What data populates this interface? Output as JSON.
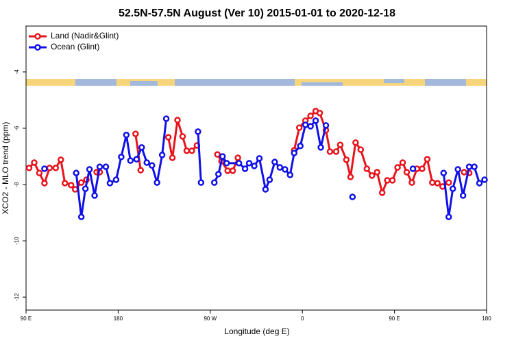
{
  "chart_data": {
    "type": "line",
    "title": "52.5N-57.5N August (Ver 10)   2015-01-01 to 2020-12-18",
    "x_label": "Longitude (deg E)",
    "y_label": "XCO2 - MLO trend (ppm)",
    "xlim": [
      -270,
      180
    ],
    "ylim": [
      -12.46,
      -2.37
    ],
    "xticks": [
      {
        "value": -270,
        "label": "90 E"
      },
      {
        "value": -180,
        "label": "180"
      },
      {
        "value": -90,
        "label": "90 W"
      },
      0,
      {
        "value": 90,
        "label": "90 E"
      },
      180
    ],
    "yticks": [
      -12,
      -10,
      -8,
      -6,
      -4
    ],
    "legend": "top-left",
    "series": [
      {
        "name": "Land (Nadir&Glint)",
        "color": "#e8131b",
        "x": [
          -267,
          -262,
          -257,
          -252,
          -247,
          -241,
          -236,
          -232,
          -226,
          -222,
          -216,
          -211,
          null,
          -201,
          -198,
          null,
          -163,
          -158,
          null,
          -131,
          -127,
          -122,
          -117,
          -113,
          -108,
          -103,
          null,
          -83,
          -79,
          -73,
          -68,
          -63,
          null,
          -8,
          -3,
          3,
          8,
          13,
          17,
          23,
          27,
          33,
          37,
          43,
          47,
          52,
          57,
          63,
          68,
          73,
          78,
          83,
          88,
          93,
          98,
          102,
          107,
          112,
          117,
          122,
          127,
          132,
          137,
          143,
          null,
          158,
          163
        ],
        "values": [
          -7.41,
          -7.22,
          -7.59,
          -7.95,
          -7.41,
          -7.41,
          -7.12,
          -7.95,
          -8.02,
          -8.17,
          -7.93,
          -7.83,
          null,
          -7.56,
          -7.56,
          null,
          -6.2,
          -7.49,
          null,
          -6.32,
          -7.05,
          -5.71,
          -6.29,
          -6.8,
          -6.8,
          -6.61,
          null,
          -6.93,
          -7.17,
          -7.51,
          -7.51,
          -7.05,
          null,
          -6.78,
          -5.98,
          -5.73,
          -5.56,
          -5.39,
          -5.46,
          -6.07,
          -6.83,
          -6.83,
          -6.59,
          -7.12,
          -7.73,
          -6.51,
          -6.76,
          -7.44,
          -7.68,
          -7.56,
          -8.29,
          -7.85,
          -7.85,
          -7.39,
          -7.22,
          -7.56,
          -7.93,
          -7.44,
          -7.44,
          -7.1,
          -7.93,
          -7.95,
          -8.07,
          -7.93,
          null,
          -7.56,
          -7.59
        ]
      },
      {
        "name": "Ocean (Glint)",
        "color": "#1010e8",
        "x": [
          -252,
          null,
          -221,
          -216,
          -212,
          -208,
          -203,
          -198,
          -192,
          -188,
          -182,
          -177,
          -172,
          -168,
          -162,
          -157,
          -152,
          -147,
          -142,
          -137,
          -133,
          null,
          -102,
          -99,
          null,
          -86,
          -82,
          -78,
          -74,
          -62,
          -56,
          -52,
          -47,
          -42,
          -36,
          -32,
          -27,
          -22,
          -17,
          -12,
          -8,
          -2,
          3,
          8,
          13,
          18,
          23,
          null,
          49,
          null,
          108,
          null,
          138,
          143,
          147,
          152,
          157,
          163,
          168,
          173,
          178
        ],
        "values": [
          -7.44,
          null,
          -7.59,
          -9.15,
          -8.15,
          -7.46,
          -8.39,
          -7.37,
          -7.37,
          -7.95,
          -7.83,
          -7.02,
          -6.24,
          -7.15,
          -7.1,
          -6.68,
          -7.22,
          -7.32,
          -7.93,
          -6.95,
          -5.66,
          null,
          -6.12,
          -7.93,
          null,
          -7.93,
          -7.63,
          -7.0,
          -7.24,
          -7.24,
          -7.44,
          -7.24,
          -7.34,
          -7.07,
          -8.17,
          -7.83,
          -7.2,
          -7.39,
          -7.46,
          -7.66,
          -6.88,
          -6.63,
          -5.88,
          -5.93,
          -5.73,
          -6.68,
          -5.9,
          null,
          -8.44,
          null,
          -7.44,
          null,
          -7.59,
          -9.15,
          -8.15,
          -7.46,
          -8.39,
          -7.37,
          -7.37,
          -7.95,
          -7.83
        ]
      }
    ]
  }
}
